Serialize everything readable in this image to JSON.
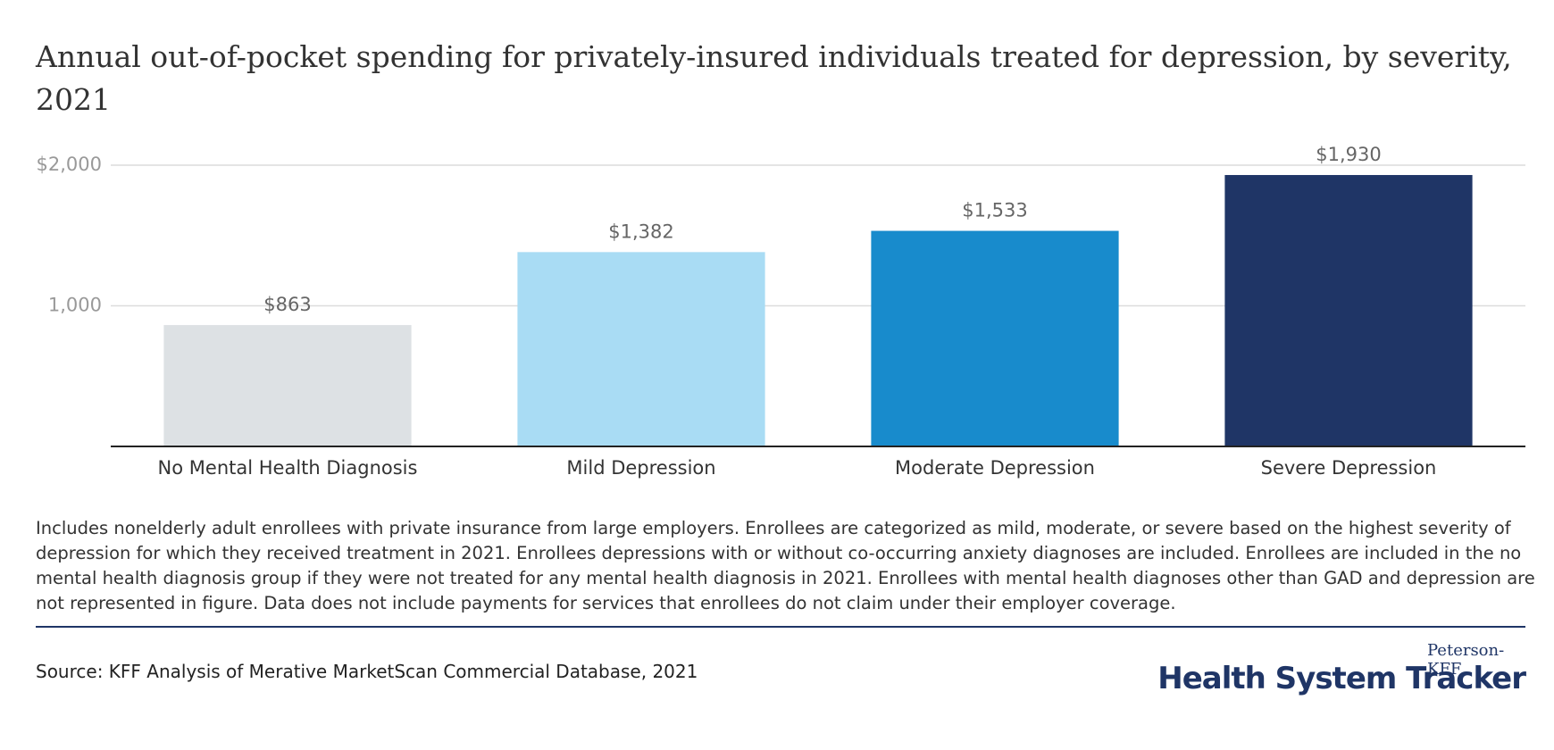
{
  "chart_data": {
    "type": "bar",
    "title": "Annual out-of-pocket spending for privately-insured individuals treated for depression, by severity, 2021",
    "categories": [
      "No Mental Health Diagnosis",
      "Mild Depression",
      "Moderate Depression",
      "Severe Depression"
    ],
    "values": [
      863,
      1382,
      1533,
      1930
    ],
    "value_labels": [
      "$863",
      "$1,382",
      "$1,533",
      "$1,930"
    ],
    "colors": [
      "#dde1e4",
      "#a9dcf4",
      "#188bcc",
      "#1f3566"
    ],
    "ylim": [
      0,
      2000
    ],
    "yticks": [
      {
        "value": 1000,
        "label": "1,000"
      },
      {
        "value": 2000,
        "label": "$2,000"
      }
    ],
    "grid": true
  },
  "notes": "Includes nonelderly adult enrollees with private insurance from large employers. Enrollees are categorized as mild, moderate, or severe based on the highest severity of depression for which they received treatment in 2021. Enrollees depressions with or without co-occurring anxiety diagnoses are included. Enrollees are included in the no mental health diagnosis group if they were not treated for any mental health diagnosis in 2021. Enrollees with mental health diagnoses other than GAD and depression are not represented in figure. Data does not include payments for services that enrollees do not claim under their employer coverage.",
  "source": "Source: KFF Analysis of Merative MarketScan Commercial Database, 2021",
  "logo": {
    "top": "Peterson-KFF",
    "main": "Health System Tracker"
  }
}
